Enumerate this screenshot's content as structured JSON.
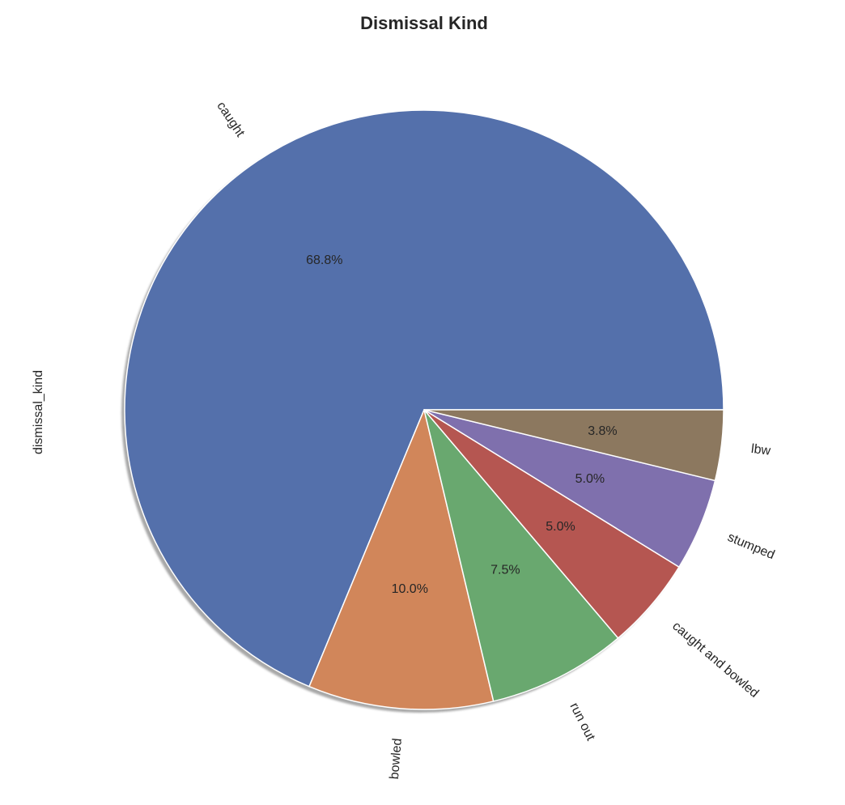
{
  "chart_data": {
    "type": "pie",
    "title": "Dismissal Kind",
    "ylabel": "dismissal_kind",
    "labels": [
      "caught",
      "bowled",
      "run out",
      "caught and bowled",
      "stumped",
      "lbw"
    ],
    "values": [
      68.8,
      10.0,
      7.5,
      5.0,
      5.0,
      3.8
    ],
    "value_labels": [
      "68.8%",
      "10.0%",
      "7.5%",
      "5.0%",
      "5.0%",
      "3.8%"
    ],
    "colors": [
      "#5470ab",
      "#d1865a",
      "#69a86f",
      "#b55651",
      "#7f70ad",
      "#8c785f"
    ],
    "start_angle_degrees": 0,
    "direction": "counterclockwise",
    "label_orientation": "rotated",
    "shadow": true
  }
}
